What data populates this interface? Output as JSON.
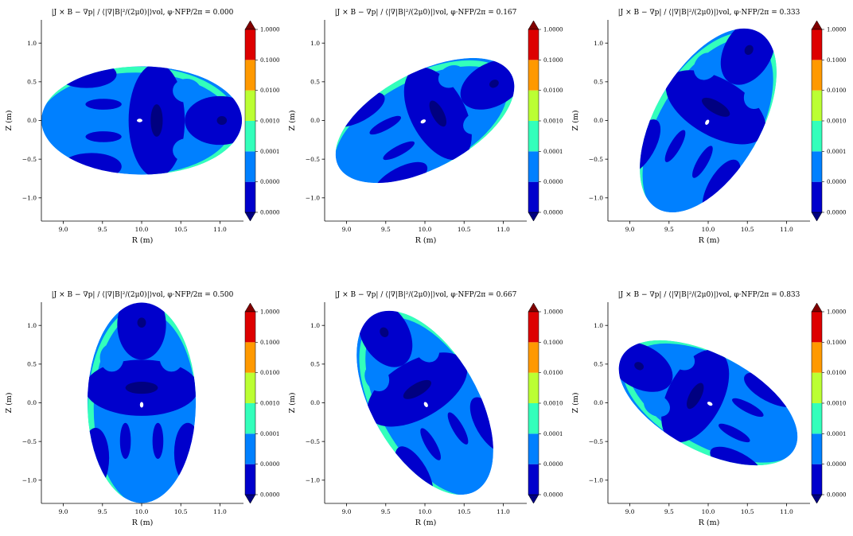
{
  "figure": {
    "suptitle": ""
  },
  "chart_data": [
    {
      "type": "contour",
      "title": "|J × B − ∇p| / ⟨|∇|B|²/(2μ0)|⟩vol, φ·NFP/2π = 0.000",
      "xlabel": "R (m)",
      "ylabel": "Z (m)",
      "xlim": [
        8.72,
        11.3
      ],
      "ylim": [
        -1.3,
        1.3
      ],
      "xticks": [
        "9.0",
        "9.5",
        "10.0",
        "10.5",
        "11.0"
      ],
      "yticks": [
        "1.0",
        "0.5",
        "0.0",
        "−0.5",
        "−1.0"
      ],
      "phi": 0.0,
      "surface": {
        "R0": 10.0,
        "a": 1.28,
        "b": 0.7,
        "tilt_deg": 0
      },
      "colorbar": {
        "levels": [
          "0.0000",
          "0.0000",
          "0.0001",
          "0.0010",
          "0.0100",
          "0.1000",
          "1.0000"
        ],
        "colors": [
          "#0000cc",
          "#0080ff",
          "#33ffbb",
          "#bbff33",
          "#ff9900",
          "#dd0000"
        ],
        "under": "#000080",
        "over": "#800000"
      }
    },
    {
      "type": "contour",
      "title": "|J × B − ∇p| / ⟨|∇|B|²/(2μ0)|⟩vol, φ·NFP/2π = 0.167",
      "xlabel": "R (m)",
      "ylabel": "Z (m)",
      "xlim": [
        8.72,
        11.3
      ],
      "ylim": [
        -1.3,
        1.3
      ],
      "xticks": [
        "9.0",
        "9.5",
        "10.0",
        "10.5",
        "11.0"
      ],
      "yticks": [
        "1.0",
        "0.5",
        "0.0",
        "−0.5",
        "−1.0"
      ],
      "phi": 0.167,
      "surface": {
        "R0": 10.0,
        "a": 1.25,
        "b": 0.62,
        "tilt_deg": 28
      },
      "colorbar": {
        "levels": [
          "0.0000",
          "0.0000",
          "0.0001",
          "0.0010",
          "0.0100",
          "0.1000",
          "1.0000"
        ],
        "colors": [
          "#0000cc",
          "#0080ff",
          "#33ffbb",
          "#bbff33",
          "#ff9900",
          "#dd0000"
        ],
        "under": "#000080",
        "over": "#800000"
      }
    },
    {
      "type": "contour",
      "title": "|J × B − ∇p| / ⟨|∇|B|²/(2μ0)|⟩vol, φ·NFP/2π = 0.333",
      "xlabel": "R (m)",
      "ylabel": "Z (m)",
      "xlim": [
        8.72,
        11.3
      ],
      "ylim": [
        -1.3,
        1.3
      ],
      "xticks": [
        "9.0",
        "9.5",
        "10.0",
        "10.5",
        "11.0"
      ],
      "yticks": [
        "1.0",
        "0.5",
        "0.0",
        "−0.5",
        "−1.0"
      ],
      "phi": 0.333,
      "surface": {
        "R0": 10.0,
        "a": 1.3,
        "b": 0.68,
        "tilt_deg": 60
      },
      "colorbar": {
        "levels": [
          "0.0000",
          "0.0000",
          "0.0001",
          "0.0010",
          "0.0100",
          "0.1000",
          "1.0000"
        ],
        "colors": [
          "#0000cc",
          "#0080ff",
          "#33ffbb",
          "#bbff33",
          "#ff9900",
          "#dd0000"
        ],
        "under": "#000080",
        "over": "#800000"
      }
    },
    {
      "type": "contour",
      "title": "|J × B − ∇p| / ⟨|∇|B|²/(2μ0)|⟩vol, φ·NFP/2π = 0.500",
      "xlabel": "R (m)",
      "ylabel": "Z (m)",
      "xlim": [
        8.72,
        11.3
      ],
      "ylim": [
        -1.3,
        1.3
      ],
      "xticks": [
        "9.0",
        "9.5",
        "10.0",
        "10.5",
        "11.0"
      ],
      "yticks": [
        "1.0",
        "0.5",
        "0.0",
        "−0.5",
        "−1.0"
      ],
      "phi": 0.5,
      "surface": {
        "R0": 10.0,
        "a": 1.28,
        "b": 0.7,
        "tilt_deg": 90
      },
      "colorbar": {
        "levels": [
          "0.0000",
          "0.0000",
          "0.0001",
          "0.0010",
          "0.0100",
          "0.1000",
          "1.0000"
        ],
        "colors": [
          "#0000cc",
          "#0080ff",
          "#33ffbb",
          "#bbff33",
          "#ff9900",
          "#dd0000"
        ],
        "under": "#000080",
        "over": "#800000"
      }
    },
    {
      "type": "contour",
      "title": "|J × B − ∇p| / ⟨|∇|B|²/(2μ0)|⟩vol, φ·NFP/2π = 0.667",
      "xlabel": "R (m)",
      "ylabel": "Z (m)",
      "xlim": [
        8.72,
        11.3
      ],
      "ylim": [
        -1.3,
        1.3
      ],
      "xticks": [
        "9.0",
        "9.5",
        "10.0",
        "10.5",
        "11.0"
      ],
      "yticks": [
        "1.0",
        "0.5",
        "0.0",
        "−0.5",
        "−1.0"
      ],
      "phi": 0.667,
      "surface": {
        "R0": 10.0,
        "a": 1.3,
        "b": 0.68,
        "tilt_deg": 120
      },
      "colorbar": {
        "levels": [
          "0.0000",
          "0.0000",
          "0.0001",
          "0.0010",
          "0.0100",
          "0.1000",
          "1.0000"
        ],
        "colors": [
          "#0000cc",
          "#0080ff",
          "#33ffbb",
          "#bbff33",
          "#ff9900",
          "#dd0000"
        ],
        "under": "#000080",
        "over": "#800000"
      }
    },
    {
      "type": "contour",
      "title": "|J × B − ∇p| / ⟨|∇|B|²/(2μ0)|⟩vol, φ·NFP/2π = 0.833",
      "xlabel": "R (m)",
      "ylabel": "Z (m)",
      "xlim": [
        8.72,
        11.3
      ],
      "ylim": [
        -1.3,
        1.3
      ],
      "xticks": [
        "9.0",
        "9.5",
        "10.0",
        "10.5",
        "11.0"
      ],
      "yticks": [
        "1.0",
        "0.5",
        "0.0",
        "−0.5",
        "−1.0"
      ],
      "phi": 0.833,
      "surface": {
        "R0": 10.0,
        "a": 1.25,
        "b": 0.62,
        "tilt_deg": 152
      },
      "colorbar": {
        "levels": [
          "0.0000",
          "0.0000",
          "0.0001",
          "0.0010",
          "0.0100",
          "0.1000",
          "1.0000"
        ],
        "colors": [
          "#0000cc",
          "#0080ff",
          "#33ffbb",
          "#bbff33",
          "#ff9900",
          "#dd0000"
        ],
        "under": "#000080",
        "over": "#800000"
      }
    }
  ]
}
